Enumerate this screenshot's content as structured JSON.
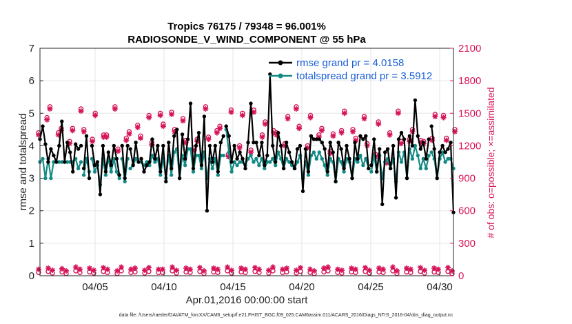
{
  "chart_data": {
    "type": "line",
    "title_line1": "Tropics 76175 / 79348 = 96.001%",
    "title_line2": "RADIOSONDE_V_WIND_COMPONENT @ 55 hPa",
    "xlabel": "Apr.01,2016 00:00:00 start",
    "ylabel_left": "rmse and totalspread",
    "ylabel_right": "# of obs: o=possible; ×=assimilated",
    "ylim_left": [
      0,
      7
    ],
    "ylim_right": [
      0,
      2100
    ],
    "xlim": [
      1,
      31
    ],
    "x_ticks": [
      5,
      10,
      15,
      20,
      25,
      30
    ],
    "x_tick_labels": [
      "04/05",
      "04/10",
      "04/15",
      "04/20",
      "04/25",
      "04/30"
    ],
    "y_ticks_left": [
      "0",
      "1",
      "2",
      "3",
      "4",
      "5",
      "6",
      "7"
    ],
    "y_ticks_right": [
      "0",
      "300",
      "600",
      "900",
      "1200",
      "1500",
      "1800",
      "2100"
    ],
    "footer": "data file: /Users/raeder/DAI/ATM_forcXX/CAM6_setup/f.e21.FHIST_BGC.f09_025.CAM6assim.011/ACARS_2016/Diags_NTrS_2016-04/obs_diag_output.nc",
    "colors": {
      "rmse": "#000000",
      "spread": "#138a85",
      "obs": "#d6145a",
      "legend_text": "#1a5fd8"
    },
    "series": [
      {
        "name": "rmse",
        "legend": "rmse grand pr = 4.0158",
        "values": [
          4.2,
          4.6,
          4.05,
          3.5,
          3.9,
          3.7,
          3.5,
          4.0,
          4.75,
          3.5,
          4.1,
          3.8,
          3.2,
          4.05,
          3.9,
          4.0,
          3.3,
          4.3,
          3.0,
          4.0,
          3.4,
          3.5,
          2.5,
          4.0,
          3.2,
          3.8,
          3.4,
          4.0,
          3.6,
          3.1,
          4.0,
          3.0,
          4.0,
          3.9,
          3.4,
          4.1,
          3.5,
          3.6,
          3.2,
          3.4,
          3.5,
          4.2,
          3.6,
          4.0,
          3.2,
          4.0,
          2.9,
          4.1,
          3.3,
          4.3,
          4.5,
          3.0,
          4.35,
          3.6,
          4.2,
          5.3,
          3.3,
          4.0,
          4.4,
          3.4,
          4.9,
          2.0,
          4.0,
          3.5,
          4.0,
          3.2,
          4.1,
          4.3,
          4.6,
          4.3,
          3.5,
          4.0,
          3.6,
          3.8,
          3.6,
          3.3,
          4.1,
          5.3,
          4.1,
          4.1,
          3.7,
          4.1,
          3.4,
          3.7,
          6.2,
          4.0,
          3.5,
          4.4,
          4.0,
          3.3,
          4.1,
          3.8,
          3.5,
          3.3,
          3.9,
          4.0,
          2.6,
          3.9,
          3.2,
          4.3,
          4.2,
          4.2,
          4.2,
          4.1,
          3.9,
          3.2,
          4.1,
          3.8,
          2.9,
          4.1,
          3.9,
          3.3,
          4.0,
          3.6,
          3.0,
          4.1,
          3.6,
          4.3,
          4.2,
          4.3,
          3.3,
          3.4,
          4.2,
          3.2,
          3.9,
          2.2,
          3.8,
          3.9,
          3.3,
          4.0,
          2.4,
          4.2,
          4.4,
          4.2,
          3.0,
          4.3,
          4.0,
          5.4,
          4.3,
          3.9,
          4.1,
          3.6,
          4.2,
          4.6,
          3.9,
          3.0,
          3.8,
          4.0,
          3.8,
          3.9,
          4.1,
          1.95
        ],
        "gaps_after": [
          15,
          18,
          29,
          32,
          36,
          67,
          120,
          142
        ]
      },
      {
        "name": "totalspread",
        "legend": "totalspread grand pr = 3.5912",
        "values": [
          3.5,
          3.6,
          3.0,
          3.6,
          3.0,
          3.5,
          3.5,
          3.5,
          3.5,
          3.5,
          3.5,
          3.5,
          3.5,
          3.6,
          3.3,
          3.5,
          3.1,
          3.6,
          3.2,
          3.6,
          3.2,
          3.4,
          2.8,
          3.6,
          3.1,
          3.6,
          3.2,
          3.6,
          3.2,
          3.0,
          3.6,
          2.9,
          3.6,
          3.3,
          3.4,
          3.6,
          3.5,
          3.5,
          3.4,
          3.5,
          3.4,
          3.7,
          3.5,
          3.6,
          3.1,
          3.6,
          3.0,
          3.7,
          3.1,
          3.8,
          3.9,
          3.0,
          3.7,
          3.4,
          3.9,
          3.9,
          3.2,
          3.7,
          3.7,
          3.3,
          3.8,
          3.0,
          3.6,
          3.3,
          3.6,
          3.1,
          3.7,
          3.7,
          4.5,
          3.8,
          3.2,
          3.5,
          3.4,
          3.5,
          3.5,
          3.4,
          3.6,
          3.7,
          3.5,
          3.6,
          3.4,
          3.6,
          3.3,
          3.5,
          3.5,
          3.6,
          3.4,
          3.8,
          3.6,
          3.3,
          3.6,
          3.5,
          3.4,
          3.3,
          3.5,
          3.7,
          3.0,
          3.5,
          3.1,
          3.7,
          3.8,
          3.6,
          3.8,
          3.6,
          3.4,
          3.1,
          3.6,
          3.5,
          2.9,
          3.6,
          3.5,
          3.2,
          3.6,
          3.5,
          3.0,
          3.6,
          3.5,
          3.7,
          3.4,
          3.6,
          3.3,
          3.2,
          3.7,
          3.2,
          3.7,
          3.0,
          3.5,
          3.6,
          3.3,
          3.6,
          2.9,
          3.8,
          3.5,
          3.8,
          3.0,
          3.9,
          3.6,
          4.0,
          3.7,
          3.3,
          3.6,
          3.3,
          3.7,
          3.8,
          3.6,
          3.0,
          3.6,
          3.8,
          3.5,
          3.6,
          3.6,
          3.3
        ],
        "gaps_after": [
          15,
          18,
          29,
          32,
          36,
          67,
          120,
          142
        ]
      }
    ],
    "obs_possible": [
      1320,
      1460,
      1560,
      1320,
      1360,
      1240,
      1360,
      1540,
      1350,
      1260,
      1500,
      1300,
      1300,
      1560,
      1170,
      1270,
      1330,
      1390,
      1290,
      1480,
      1230,
      1500,
      1400,
      1510,
      1350,
      1450,
      1250,
      1180,
      1260,
      1560,
      1280,
      1340,
      1380,
      1120,
      1530,
      1200,
      1500,
      1160,
      1530,
      1300,
      1420,
      1340,
      1320,
      1220,
      1470,
      1560,
      1380,
      1200,
      1480,
      1300,
      1360,
      1150,
      1310,
      1340,
      1520,
      1350,
      1270,
      1470,
      1220,
      1120,
      1420,
      1060,
      1320,
      1520,
      1240,
      1260,
      1350,
      1250,
      1240,
      1270,
      1490,
      1480,
      1270,
      1350
    ],
    "obs_assimilated": [
      1300,
      1440,
      1540,
      1300,
      1340,
      1220,
      1340,
      1520,
      1330,
      1240,
      1480,
      1280,
      1280,
      1540,
      1150,
      1250,
      1310,
      1370,
      1270,
      1460,
      1210,
      1480,
      1380,
      1490,
      1330,
      1430,
      1230,
      1160,
      1240,
      1540,
      1260,
      1320,
      1360,
      1100,
      1510,
      1180,
      1480,
      1140,
      1510,
      1280,
      1400,
      1320,
      1300,
      1200,
      1450,
      1540,
      1360,
      1180,
      1460,
      1280,
      1340,
      1130,
      1290,
      1320,
      1500,
      1330,
      1250,
      1450,
      1200,
      1100,
      1400,
      1040,
      1300,
      1500,
      1220,
      1240,
      1330,
      1230,
      1220,
      1250,
      1470,
      1460,
      1250,
      1330
    ],
    "obs_low_possible": [
      30,
      40,
      25,
      35,
      20,
      45,
      30,
      35,
      25,
      40,
      30,
      20,
      45,
      30,
      35,
      25,
      40,
      30,
      30,
      45,
      25,
      35,
      30,
      40,
      20,
      35,
      30,
      45,
      25,
      35,
      30,
      40,
      30,
      25,
      45,
      30,
      35,
      25,
      40,
      30,
      20,
      35,
      45,
      30,
      25,
      35,
      30,
      40,
      25,
      35,
      30,
      45,
      20,
      35,
      30,
      40,
      25,
      35,
      30,
      40,
      20
    ],
    "obs_low_assimilated": [
      60,
      70,
      50,
      65,
      45,
      80,
      60,
      70,
      50,
      75,
      60,
      45,
      80,
      60,
      70,
      50,
      75,
      60,
      60,
      80,
      50,
      70,
      60,
      75,
      45,
      70,
      60,
      80,
      50,
      70,
      60,
      75,
      60,
      50,
      80,
      60,
      70,
      50,
      75,
      60,
      45,
      70,
      80,
      60,
      50,
      70,
      60,
      75,
      50,
      70,
      60,
      80,
      45,
      70,
      60,
      75,
      50,
      70,
      60,
      75,
      45
    ]
  }
}
